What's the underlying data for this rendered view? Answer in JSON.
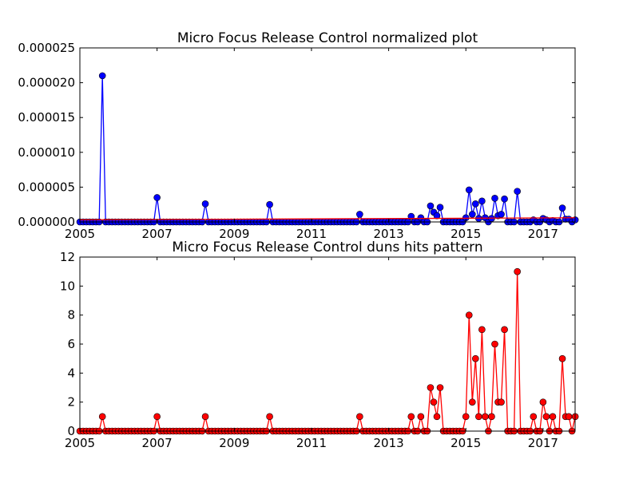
{
  "chart_data": [
    {
      "type": "line",
      "title": "Micro Focus Release Control normalized plot",
      "xlabel": "",
      "ylabel": "",
      "xlim": [
        2005.0,
        2017.83
      ],
      "ylim": [
        0,
        2.5e-05
      ],
      "x_ticks": [
        "2005",
        "2007",
        "2009",
        "2011",
        "2013",
        "2015",
        "2017"
      ],
      "y_ticks": [
        "0.000000",
        "0.000005",
        "0.000010",
        "0.000015",
        "0.000020",
        "0.000025"
      ],
      "grid": false,
      "series": [
        {
          "color": "#0000ff",
          "marker": "circle",
          "points": [
            {
              "x": "2005-08",
              "y": 2.1e-05
            },
            {
              "x": "2007-01",
              "y": 3.5e-06
            },
            {
              "x": "2008-04",
              "y": 2.6e-06
            },
            {
              "x": "2009-12",
              "y": 2.5e-06
            },
            {
              "x": "2012-04",
              "y": 1.1e-06
            },
            {
              "x": "2013-08",
              "y": 8e-07
            },
            {
              "x": "2013-11",
              "y": 6e-07
            },
            {
              "x": "2014-02",
              "y": 2.3e-06
            },
            {
              "x": "2014-03",
              "y": 1.4e-06
            },
            {
              "x": "2014-04",
              "y": 9e-07
            },
            {
              "x": "2014-05",
              "y": 2.1e-06
            },
            {
              "x": "2015-01",
              "y": 6e-07
            },
            {
              "x": "2015-02",
              "y": 4.6e-06
            },
            {
              "x": "2015-03",
              "y": 1.1e-06
            },
            {
              "x": "2015-04",
              "y": 2.6e-06
            },
            {
              "x": "2015-05",
              "y": 5e-07
            },
            {
              "x": "2015-06",
              "y": 3e-06
            },
            {
              "x": "2015-07",
              "y": 6e-07
            },
            {
              "x": "2015-09",
              "y": 5e-07
            },
            {
              "x": "2015-10",
              "y": 3.4e-06
            },
            {
              "x": "2015-11",
              "y": 9e-07
            },
            {
              "x": "2015-12",
              "y": 1.1e-06
            },
            {
              "x": "2016-01",
              "y": 3.3e-06
            },
            {
              "x": "2016-05",
              "y": 4.4e-06
            },
            {
              "x": "2016-10",
              "y": 3e-07
            },
            {
              "x": "2017-01",
              "y": 5e-07
            },
            {
              "x": "2017-02",
              "y": 3e-07
            },
            {
              "x": "2017-04",
              "y": 2e-07
            },
            {
              "x": "2017-07",
              "y": 2e-06
            },
            {
              "x": "2017-08",
              "y": 4e-07
            },
            {
              "x": "2017-09",
              "y": 4e-07
            },
            {
              "x": "2017-11",
              "y": 3e-07
            }
          ]
        },
        {
          "color": "#ff0000",
          "marker": "none",
          "points": [
            {
              "x": "2005-01",
              "y": 3e-07
            },
            {
              "x": "2017-11",
              "y": 6e-07
            }
          ]
        }
      ]
    },
    {
      "type": "line",
      "title": "Micro Focus Release Control duns hits pattern",
      "xlabel": "",
      "ylabel": "",
      "xlim": [
        2005.0,
        2017.83
      ],
      "ylim": [
        0,
        12
      ],
      "x_ticks": [
        "2005",
        "2007",
        "2009",
        "2011",
        "2013",
        "2015",
        "2017"
      ],
      "y_ticks": [
        "0",
        "2",
        "4",
        "6",
        "8",
        "10",
        "12"
      ],
      "grid": false,
      "series": [
        {
          "color": "#ff0000",
          "marker": "circle",
          "points": [
            {
              "x": "2005-08",
              "y": 1
            },
            {
              "x": "2007-01",
              "y": 1
            },
            {
              "x": "2008-04",
              "y": 1
            },
            {
              "x": "2009-12",
              "y": 1
            },
            {
              "x": "2012-04",
              "y": 1
            },
            {
              "x": "2013-08",
              "y": 1
            },
            {
              "x": "2013-11",
              "y": 1
            },
            {
              "x": "2014-02",
              "y": 3
            },
            {
              "x": "2014-03",
              "y": 2
            },
            {
              "x": "2014-04",
              "y": 1
            },
            {
              "x": "2014-05",
              "y": 3
            },
            {
              "x": "2015-01",
              "y": 1
            },
            {
              "x": "2015-02",
              "y": 8
            },
            {
              "x": "2015-03",
              "y": 2
            },
            {
              "x": "2015-04",
              "y": 5
            },
            {
              "x": "2015-05",
              "y": 1
            },
            {
              "x": "2015-06",
              "y": 7
            },
            {
              "x": "2015-07",
              "y": 1
            },
            {
              "x": "2015-09",
              "y": 1
            },
            {
              "x": "2015-10",
              "y": 6
            },
            {
              "x": "2015-11",
              "y": 2
            },
            {
              "x": "2015-12",
              "y": 2
            },
            {
              "x": "2016-01",
              "y": 7
            },
            {
              "x": "2016-05",
              "y": 11
            },
            {
              "x": "2016-10",
              "y": 1
            },
            {
              "x": "2017-01",
              "y": 2
            },
            {
              "x": "2017-02",
              "y": 1
            },
            {
              "x": "2017-04",
              "y": 1
            },
            {
              "x": "2017-07",
              "y": 5
            },
            {
              "x": "2017-08",
              "y": 1
            },
            {
              "x": "2017-09",
              "y": 1
            },
            {
              "x": "2017-11",
              "y": 1
            }
          ]
        }
      ]
    }
  ]
}
